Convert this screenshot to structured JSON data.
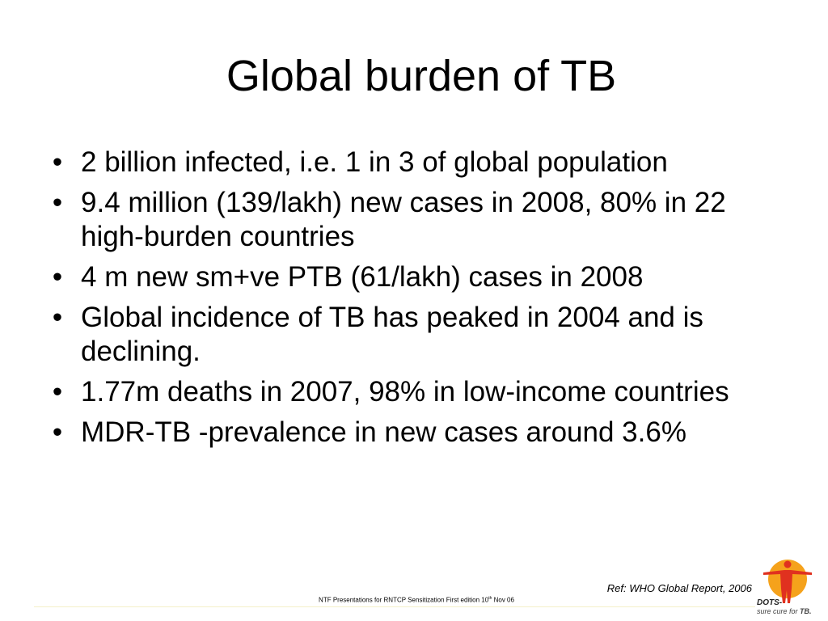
{
  "slide": {
    "title": "Global burden of TB",
    "bullet_symbol": "•",
    "bullets": [
      "2 billion infected, i.e. 1 in 3 of global population",
      "9.4 million (139/lakh) new cases in 2008, 80% in 22 high-burden countries",
      "4 m new sm+ve PTB (61/lakh) cases in 2008",
      "Global incidence of TB has peaked in 2004 and is declining.",
      "1.77m deaths in 2007, 98% in low-income countries",
      " MDR-TB -prevalence in new cases around 3.6%"
    ],
    "reference": "Ref: WHO Global Report, 2006"
  },
  "footer": {
    "text_before": "NTF Presentations for RNTCP Sensitization First edition 10",
    "superscript": "th",
    "text_after": " Nov 06"
  },
  "logo": {
    "icon": "dots-figure-icon",
    "label": "DOTS-",
    "sublabel_prefix": "sure cure for ",
    "sublabel_emphasis": "TB."
  },
  "colors": {
    "text": "#000000",
    "logo_circle": "#f5a21b",
    "logo_figure": "#e0311f",
    "footer_rule": "#f4f0c8"
  }
}
